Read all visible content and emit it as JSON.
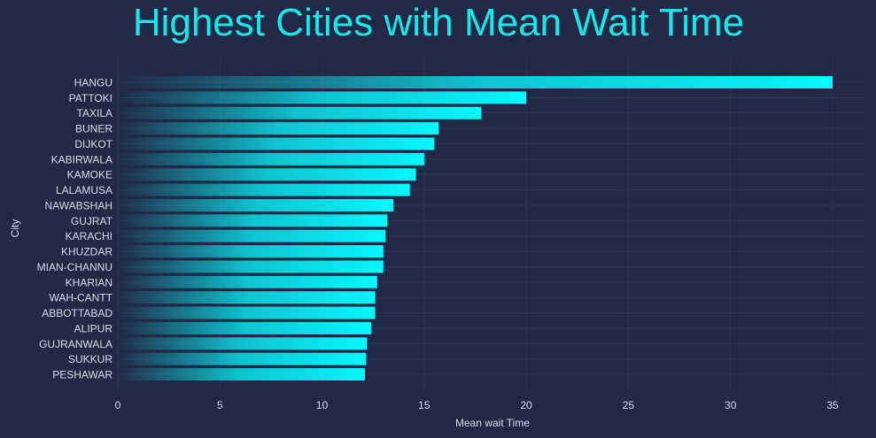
{
  "chart_data": {
    "type": "bar",
    "orientation": "horizontal",
    "title": "Highest Cities with Mean Wait Time",
    "xlabel": "Mean wait Time",
    "ylabel": "City",
    "xlim": [
      0,
      36.8
    ],
    "xticks": [
      0,
      5,
      10,
      15,
      20,
      25,
      30,
      35
    ],
    "grid": true,
    "categories": [
      "HANGU",
      "PATTOKI",
      "TAXILA",
      "BUNER",
      "DIJKOT",
      "KABIRWALA",
      "KAMOKE",
      "LALAMUSA",
      "NAWABSHAH",
      "GUJRAT",
      "KARACHI",
      "KHUZDAR",
      "MIAN-CHANNU",
      "KHARIAN",
      "WAH-CANTT",
      "ABBOTTABAD",
      "ALIPUR",
      "GUJRANWALA",
      "SUKKUR",
      "PESHAWAR"
    ],
    "values": [
      35.0,
      20.0,
      17.8,
      15.7,
      15.5,
      15.0,
      14.6,
      14.3,
      13.5,
      13.2,
      13.1,
      13.0,
      13.0,
      12.7,
      12.6,
      12.6,
      12.4,
      12.2,
      12.15,
      12.1
    ]
  },
  "colors": {
    "background": "#212946",
    "bar": "#08F7FE",
    "title": "#15E8EA",
    "grid": "#2A3459",
    "text": "#d8dcec"
  }
}
